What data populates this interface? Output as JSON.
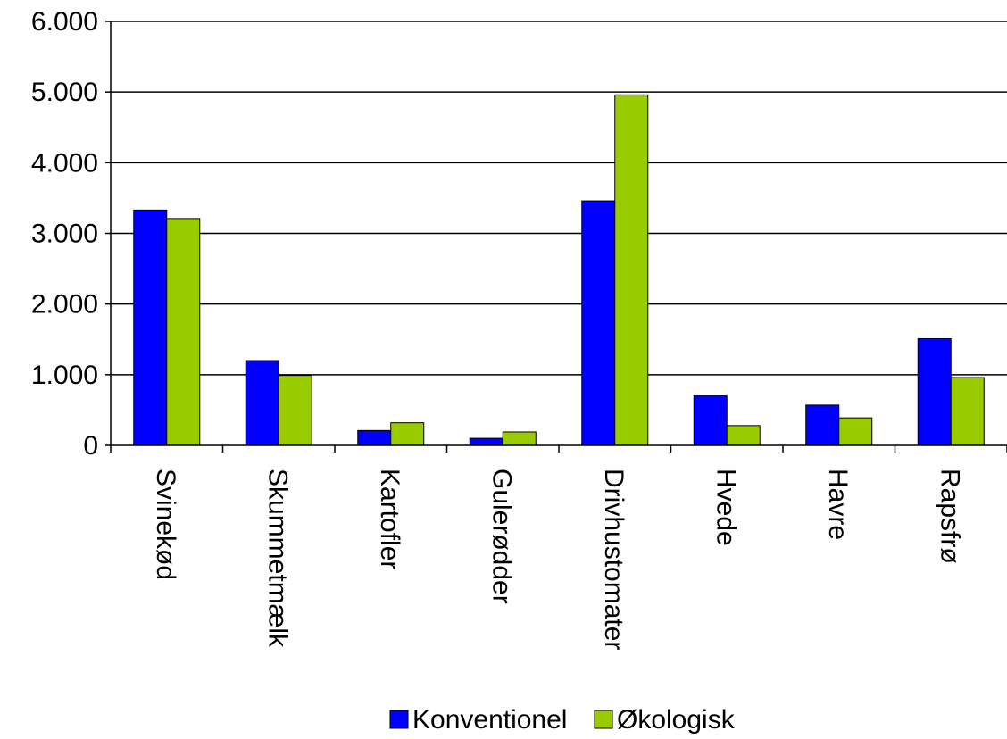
{
  "chart_data": {
    "type": "bar",
    "categories": [
      "Svinekød",
      "Skummetmælk",
      "Kartofler",
      "Gulerødder",
      "Drivhustomater",
      "Hvede",
      "Havre",
      "Rapsfrø"
    ],
    "series": [
      {
        "name": "Konventionel",
        "color": "#0000ff",
        "values": [
          3330,
          1200,
          210,
          100,
          3460,
          700,
          570,
          1510
        ]
      },
      {
        "name": "Økologisk",
        "color": "#99cc00",
        "values": [
          3210,
          990,
          320,
          190,
          4960,
          280,
          390,
          960
        ]
      }
    ],
    "yticks": [
      "0",
      "1.000",
      "2.000",
      "3.000",
      "4.000",
      "5.000",
      "6.000"
    ],
    "ylim": [
      0,
      6000
    ],
    "grid": true,
    "legend_position": "bottom",
    "title": "",
    "xlabel": "",
    "ylabel": ""
  }
}
